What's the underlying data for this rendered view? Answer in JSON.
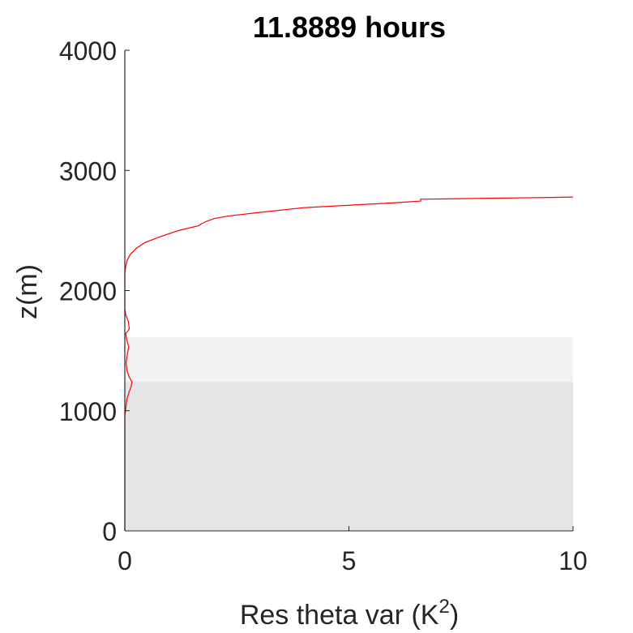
{
  "chart_data": {
    "type": "line",
    "title": "11.8889 hours",
    "xlabel": "Res theta var (K",
    "xlabel_superscript": "2",
    "xlabel_suffix": ")",
    "ylabel": "z(m)",
    "xlim": [
      0,
      10
    ],
    "ylim": [
      0,
      4000
    ],
    "xticks": [
      0,
      5,
      10
    ],
    "xtick_labels": [
      "0",
      "5",
      "10"
    ],
    "yticks": [
      0,
      1000,
      2000,
      3000,
      4000
    ],
    "ytick_labels": [
      "0",
      "1000",
      "2000",
      "3000",
      "4000"
    ],
    "grid": false,
    "shaded_bands": [
      {
        "y0": 0,
        "y1": 1240,
        "color": "#e5e5e5"
      },
      {
        "y0": 1240,
        "y1": 1610,
        "color": "#f2f2f2"
      }
    ],
    "series": [
      {
        "color": "#ff0000",
        "points": [
          [
            0,
            0
          ],
          [
            0,
            950
          ],
          [
            0.02,
            1020
          ],
          [
            0.05,
            1100
          ],
          [
            0.1,
            1160
          ],
          [
            0.14,
            1200
          ],
          [
            0.16,
            1240
          ],
          [
            0.1,
            1280
          ],
          [
            0.05,
            1330
          ],
          [
            0.03,
            1400
          ],
          [
            0.06,
            1480
          ],
          [
            0.09,
            1530
          ],
          [
            0.05,
            1580
          ],
          [
            0.02,
            1640
          ],
          [
            0.1,
            1680
          ],
          [
            0.08,
            1740
          ],
          [
            0.02,
            1800
          ],
          [
            0,
            1850
          ],
          [
            0,
            2150
          ],
          [
            0.02,
            2200
          ],
          [
            0.05,
            2250
          ],
          [
            0.12,
            2300
          ],
          [
            0.25,
            2350
          ],
          [
            0.45,
            2400
          ],
          [
            0.8,
            2450
          ],
          [
            1.2,
            2500
          ],
          [
            1.65,
            2540
          ],
          [
            1.7,
            2555
          ],
          [
            1.85,
            2580
          ],
          [
            2.0,
            2600
          ],
          [
            2.3,
            2620
          ],
          [
            3.0,
            2650
          ],
          [
            4.0,
            2690
          ],
          [
            5.0,
            2710
          ],
          [
            6.0,
            2730
          ],
          [
            6.6,
            2745
          ],
          [
            6.6,
            2760
          ],
          [
            7.5,
            2765
          ],
          [
            8.5,
            2770
          ],
          [
            9.5,
            2775
          ],
          [
            10.0,
            2778
          ]
        ]
      },
      {
        "color": "#2b2b8c",
        "points": [
          [
            0,
            0
          ],
          [
            0,
            4000
          ]
        ]
      }
    ]
  }
}
